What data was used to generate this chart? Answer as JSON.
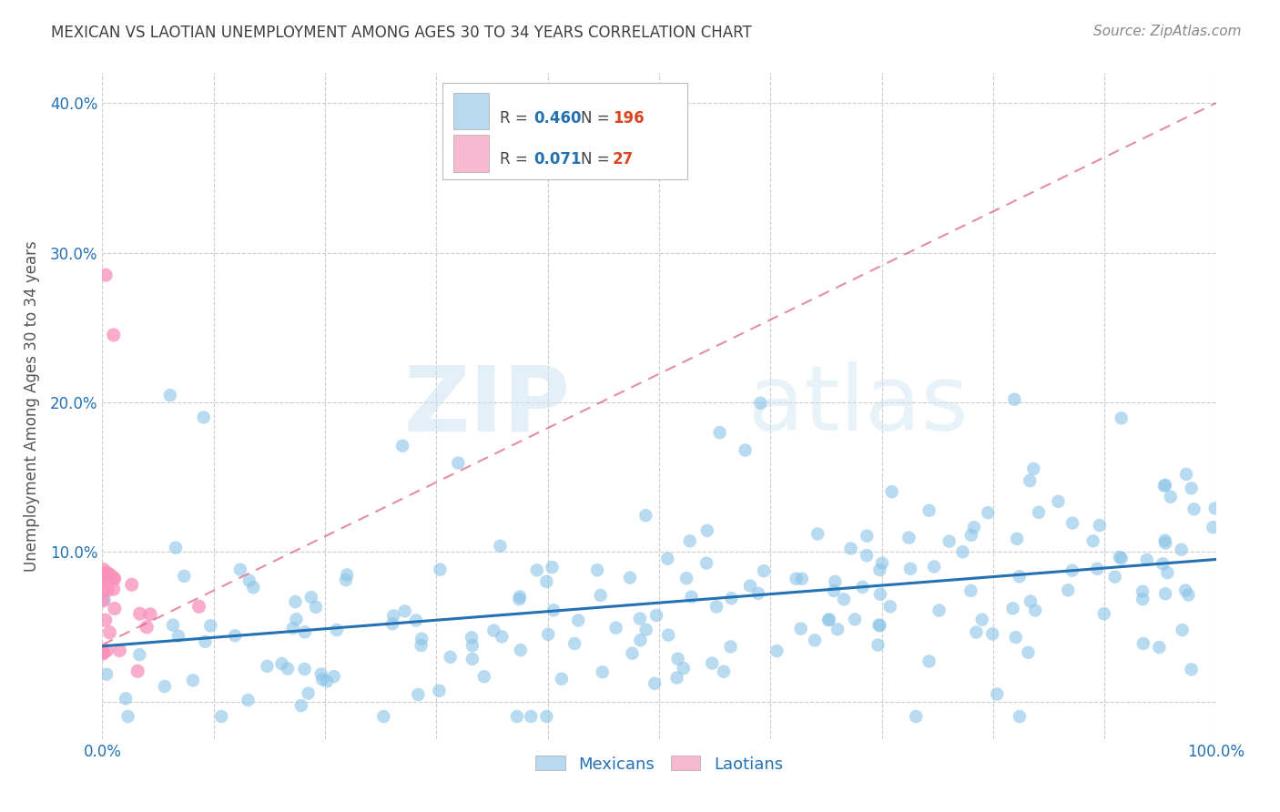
{
  "title": "MEXICAN VS LAOTIAN UNEMPLOYMENT AMONG AGES 30 TO 34 YEARS CORRELATION CHART",
  "source": "Source: ZipAtlas.com",
  "ylabel": "Unemployment Among Ages 30 to 34 years",
  "xlim": [
    0.0,
    1.0
  ],
  "ylim": [
    -0.025,
    0.42
  ],
  "xtick_vals": [
    0.0,
    0.1,
    0.2,
    0.3,
    0.4,
    0.5,
    0.6,
    0.7,
    0.8,
    0.9,
    1.0
  ],
  "xticklabels": [
    "0.0%",
    "",
    "",
    "",
    "",
    "",
    "",
    "",
    "",
    "",
    "100.0%"
  ],
  "ytick_vals": [
    0.0,
    0.1,
    0.2,
    0.3,
    0.4
  ],
  "yticklabels": [
    "",
    "10.0%",
    "20.0%",
    "30.0%",
    "40.0%"
  ],
  "mexican_R": "0.460",
  "mexican_N": "196",
  "laotian_R": "0.071",
  "laotian_N": "27",
  "mexican_color": "#89c4e8",
  "laotian_color": "#f990bb",
  "mexican_line_color": "#2471b3",
  "laotian_line_color": "#d9607a",
  "watermark_zip": "ZIP",
  "watermark_atlas": "atlas",
  "background_color": "#ffffff",
  "grid_color": "#cccccc",
  "title_color": "#404040",
  "axis_label_color": "#555555",
  "tick_color_x": "#2471b3",
  "tick_color_y": "#2471b3",
  "legend_box_color_mexican": "#b8d9f0",
  "legend_box_color_laotian": "#f8b8d0",
  "R_color": "#2471b3",
  "N_color": "#dd4422",
  "mexican_trend_x": [
    0.0,
    1.0
  ],
  "mexican_trend_y": [
    0.037,
    0.095
  ],
  "laotian_trend_x": [
    0.0,
    1.0
  ],
  "laotian_trend_y": [
    0.038,
    0.4
  ]
}
